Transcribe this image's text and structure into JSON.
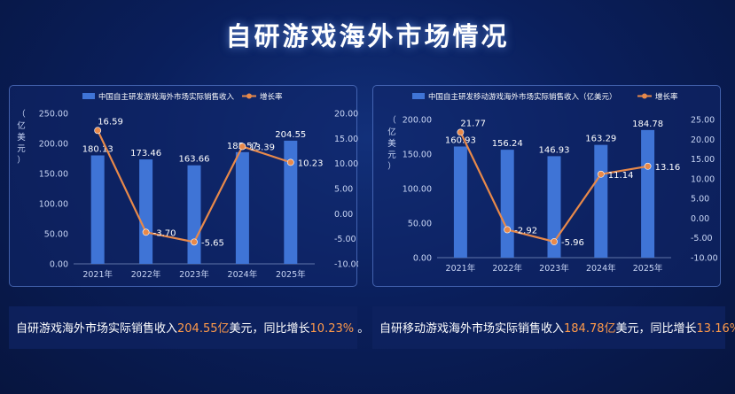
{
  "header": {
    "title": "自研游戏海外市场情况"
  },
  "colors": {
    "bar": "#3f74d6",
    "line": "#e8894a",
    "axis_text": "#c9d6f5",
    "label": "#ffffff"
  },
  "chart_data": [
    {
      "type": "bar+line",
      "title": "",
      "categories": [
        "2021年",
        "2022年",
        "2023年",
        "2024年",
        "2025年"
      ],
      "ylabel": "（亿美元）",
      "ylim": [
        0,
        250
      ],
      "y_ticks": [
        "250.00",
        "200.00",
        "150.00",
        "100.00",
        "50.00",
        "0.00"
      ],
      "y2lim": [
        -10,
        20
      ],
      "y2_ticks": [
        "20.00",
        "15.00",
        "10.00",
        "5.00",
        "0.00",
        "-5.00",
        "-10.00"
      ],
      "series": [
        {
          "name": "中国自主研发游戏海外市场实际销售收入",
          "type": "bar",
          "values": [
            180.13,
            173.46,
            163.66,
            185.57,
            204.55
          ],
          "labels": [
            "180.13",
            "173.46",
            "163.66",
            "185.57",
            "204.55"
          ]
        },
        {
          "name": "增长率",
          "type": "line",
          "axis": "right",
          "values": [
            16.59,
            -3.7,
            -5.65,
            13.39,
            10.23
          ],
          "labels": [
            "16.59",
            "-3.70",
            "-5.65",
            "13.39",
            "10.23"
          ]
        }
      ]
    },
    {
      "type": "bar+line",
      "title": "",
      "categories": [
        "2021年",
        "2022年",
        "2023年",
        "2024年",
        "2025年"
      ],
      "ylabel": "（亿美元）",
      "ylim": [
        0,
        200
      ],
      "y_ticks": [
        "200.00",
        "150.00",
        "100.00",
        "50.00",
        "0.00"
      ],
      "y2lim": [
        -10,
        25
      ],
      "y2_ticks": [
        "25.00",
        "20.00",
        "15.00",
        "10.00",
        "5.00",
        "0.00",
        "-5.00",
        "-10.00"
      ],
      "series": [
        {
          "name": "中国自主研发移动游戏海外市场实际销售收入（亿美元）",
          "type": "bar",
          "values": [
            160.93,
            156.24,
            146.93,
            163.29,
            184.78
          ],
          "labels": [
            "160.93",
            "156.24",
            "146.93",
            "163.29",
            "184.78"
          ]
        },
        {
          "name": "增长率",
          "type": "line",
          "axis": "right",
          "values": [
            21.77,
            -2.92,
            -5.96,
            11.14,
            13.16
          ],
          "labels": [
            "21.77",
            "-2.92",
            "-5.96",
            "11.14",
            "13.16"
          ]
        }
      ]
    }
  ],
  "captions": {
    "left": {
      "prefix": "自研游戏海外市场实际销售收入",
      "value": "204.55亿",
      "mid": "美元，同比增长",
      "growth": "10.23%",
      "suffix": " 。"
    },
    "right": {
      "prefix": "自研移动游戏海外市场实际销售收入",
      "value": "184.78亿",
      "mid": "美元，同比增长",
      "growth": "13.16%",
      "suffix": "。"
    }
  }
}
